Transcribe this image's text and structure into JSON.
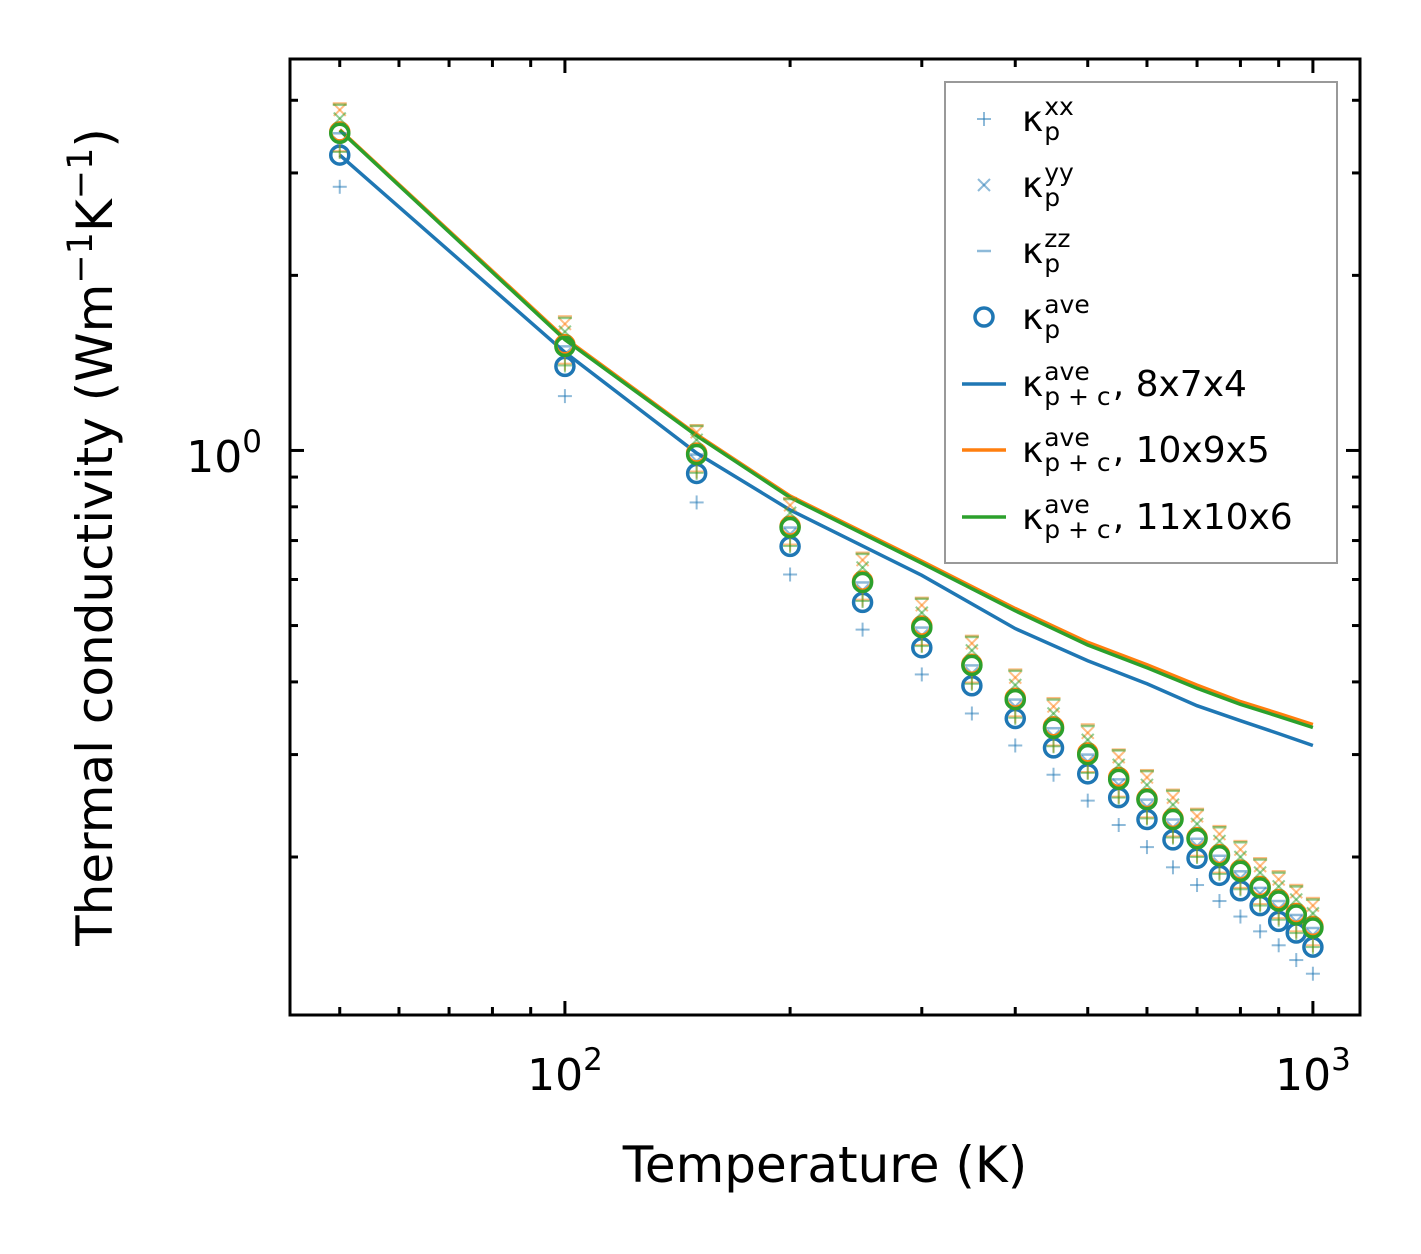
{
  "chart_data": {
    "type": "scatter",
    "title": "",
    "xlabel": "Temperature (K)",
    "ylabel": {
      "prefix": "Thermal conductivity (Wm",
      "exp1": "−1",
      "mid": "K",
      "exp2": "−1",
      "suffix": ")"
    },
    "xscale": "log",
    "yscale": "log",
    "xlim": [
      42.9,
      1156
    ],
    "ylim": [
      0.107,
      4.71
    ],
    "x_ticks": [
      {
        "base": "10",
        "exp": "2",
        "value": 100
      },
      {
        "base": "10",
        "exp": "3",
        "value": 1000
      }
    ],
    "y_ticks": [
      {
        "base": "10",
        "exp": "0",
        "value": 1
      }
    ],
    "grid": false,
    "legend_position": "top-right",
    "legend": [
      {
        "symbol": "κ",
        "sup": "xx",
        "sub": "p",
        "suffix": "",
        "marker": "plus"
      },
      {
        "symbol": "κ",
        "sup": "yy",
        "sub": "p",
        "suffix": "",
        "marker": "x"
      },
      {
        "symbol": "κ",
        "sup": "zz",
        "sub": "p",
        "suffix": "",
        "marker": "dash"
      },
      {
        "symbol": "κ",
        "sup": "ave",
        "sub": "p",
        "suffix": "",
        "marker": "circle"
      },
      {
        "symbol": "κ",
        "sup": "ave",
        "sub": "p + c",
        "suffix": ", 8x7x4",
        "marker": "line",
        "color": "#1f77b4"
      },
      {
        "symbol": "κ",
        "sup": "ave",
        "sub": "p + c",
        "suffix": ", 10x9x5",
        "marker": "line",
        "color": "#ff7f0e"
      },
      {
        "symbol": "κ",
        "sup": "ave",
        "sub": "p + c",
        "suffix": ", 11x10x6",
        "marker": "line",
        "color": "#2ca02c"
      }
    ],
    "T": [
      50,
      100,
      150,
      200,
      250,
      300,
      350,
      400,
      450,
      500,
      550,
      600,
      650,
      700,
      750,
      800,
      850,
      900,
      950,
      1000
    ],
    "point_series": [
      {
        "name": "8x7x4",
        "color": "#1f77b4",
        "xx": [
          2.84,
          1.24,
          0.814,
          0.612,
          0.492,
          0.412,
          0.353,
          0.311,
          0.277,
          0.25,
          0.227,
          0.208,
          0.192,
          0.179,
          0.168,
          0.158,
          0.149,
          0.141,
          0.133,
          0.126
        ],
        "yy": [
          3.38,
          1.465,
          0.959,
          0.718,
          0.575,
          0.481,
          0.414,
          0.363,
          0.323,
          0.292,
          0.266,
          0.244,
          0.225,
          0.209,
          0.195,
          0.184,
          0.173,
          0.163,
          0.155,
          0.147
        ],
        "zz": [
          3.51,
          1.51,
          0.984,
          0.737,
          0.593,
          0.496,
          0.427,
          0.373,
          0.333,
          0.3,
          0.272,
          0.251,
          0.232,
          0.215,
          0.201,
          0.189,
          0.177,
          0.168,
          0.159,
          0.151
        ],
        "ave": [
          3.22,
          1.395,
          0.913,
          0.684,
          0.548,
          0.458,
          0.394,
          0.346,
          0.308,
          0.278,
          0.253,
          0.232,
          0.214,
          0.199,
          0.186,
          0.175,
          0.165,
          0.155,
          0.148,
          0.14
        ]
      },
      {
        "name": "10x9x5",
        "color": "#ff7f0e",
        "xx": [
          3.27,
          1.41,
          0.92,
          0.689,
          0.554,
          0.463,
          0.399,
          0.349,
          0.311,
          0.28,
          0.254,
          0.234,
          0.217,
          0.201,
          0.188,
          0.177,
          0.166,
          0.157,
          0.149,
          0.141
        ],
        "yy": [
          3.85,
          1.65,
          1.075,
          0.805,
          0.648,
          0.542,
          0.466,
          0.407,
          0.363,
          0.327,
          0.297,
          0.274,
          0.253,
          0.235,
          0.219,
          0.206,
          0.193,
          0.183,
          0.174,
          0.165
        ],
        "zz": [
          3.95,
          1.7,
          1.105,
          0.828,
          0.667,
          0.558,
          0.48,
          0.42,
          0.375,
          0.338,
          0.306,
          0.282,
          0.261,
          0.242,
          0.226,
          0.213,
          0.199,
          0.189,
          0.179,
          0.17
        ],
        "ave": [
          3.53,
          1.52,
          0.99,
          0.741,
          0.596,
          0.499,
          0.429,
          0.375,
          0.335,
          0.302,
          0.274,
          0.252,
          0.233,
          0.216,
          0.202,
          0.19,
          0.178,
          0.169,
          0.16,
          0.152
        ]
      },
      {
        "name": "11x10x6",
        "color": "#2ca02c",
        "xx": [
          3.26,
          1.4,
          0.915,
          0.685,
          0.551,
          0.461,
          0.397,
          0.347,
          0.31,
          0.279,
          0.253,
          0.233,
          0.216,
          0.2,
          0.187,
          0.176,
          0.165,
          0.156,
          0.148,
          0.14
        ],
        "yy": [
          3.72,
          1.6,
          1.043,
          0.781,
          0.629,
          0.526,
          0.453,
          0.395,
          0.353,
          0.318,
          0.288,
          0.266,
          0.246,
          0.228,
          0.213,
          0.2,
          0.188,
          0.178,
          0.169,
          0.16
        ],
        "zz": [
          3.93,
          1.69,
          1.102,
          0.825,
          0.664,
          0.556,
          0.478,
          0.418,
          0.373,
          0.336,
          0.305,
          0.281,
          0.26,
          0.241,
          0.225,
          0.212,
          0.198,
          0.188,
          0.178,
          0.169
        ],
        "ave": [
          3.51,
          1.51,
          0.984,
          0.737,
          0.593,
          0.496,
          0.427,
          0.373,
          0.333,
          0.3,
          0.272,
          0.251,
          0.232,
          0.215,
          0.201,
          0.189,
          0.177,
          0.168,
          0.159,
          0.151
        ]
      }
    ],
    "line_T": [
      50,
      100,
      150,
      200,
      300,
      400,
      500,
      600,
      700,
      800,
      900,
      1000
    ],
    "line_series": [
      {
        "name": "8x7x4",
        "color": "#1f77b4",
        "values": [
          3.22,
          1.475,
          0.99,
          0.79,
          0.61,
          0.494,
          0.435,
          0.397,
          0.364,
          0.343,
          0.326,
          0.311
        ]
      },
      {
        "name": "10x9x5",
        "color": "#ff7f0e",
        "values": [
          3.56,
          1.56,
          1.065,
          0.835,
          0.645,
          0.535,
          0.468,
          0.428,
          0.395,
          0.37,
          0.353,
          0.338
        ]
      },
      {
        "name": "11x10x6",
        "color": "#2ca02c",
        "values": [
          3.55,
          1.55,
          1.06,
          0.83,
          0.64,
          0.53,
          0.463,
          0.423,
          0.39,
          0.366,
          0.349,
          0.334
        ]
      }
    ]
  }
}
